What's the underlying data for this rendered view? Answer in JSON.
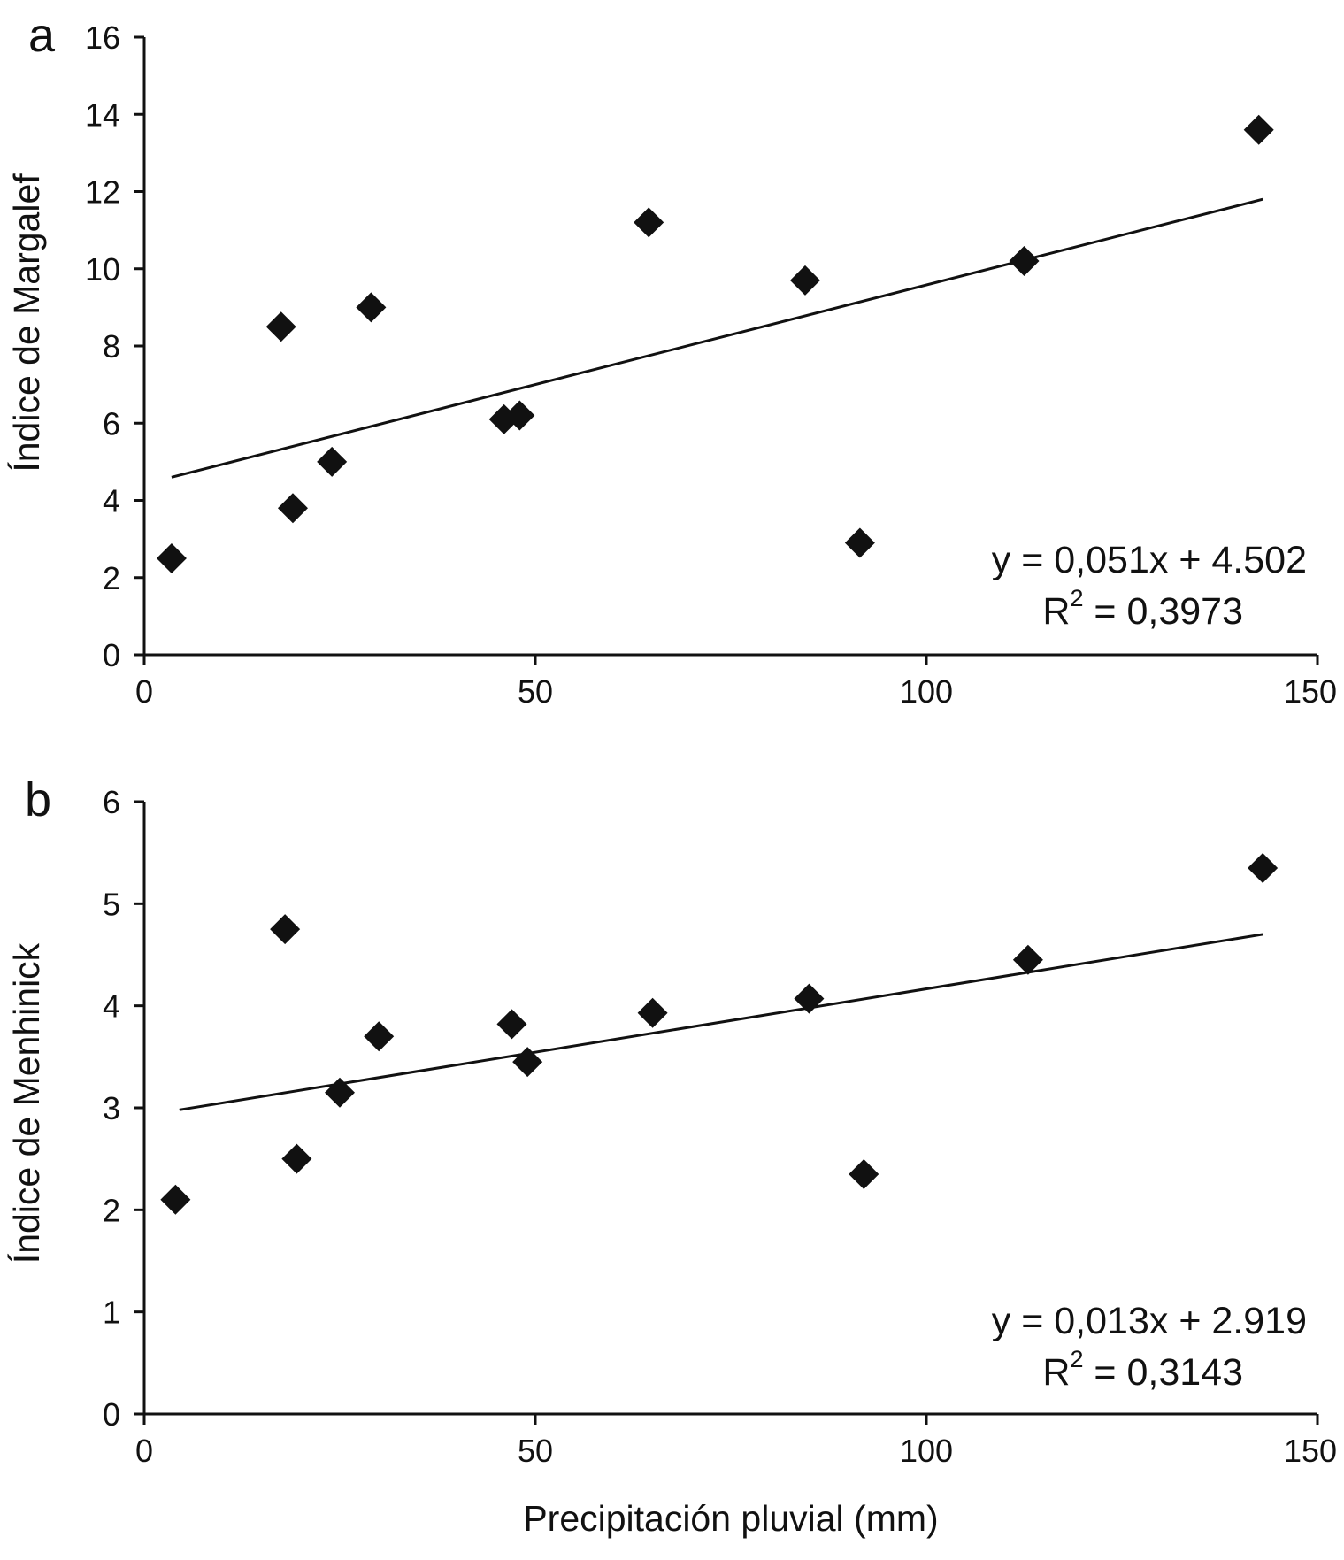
{
  "figure": {
    "x_axis_title": "Precipitación pluvial (mm)"
  },
  "chart_data": [
    {
      "type": "scatter",
      "panel_label": "a",
      "title": "",
      "xlabel": "Precipitación pluvial (mm)",
      "ylabel": "Índice de Margalef",
      "xlim": [
        0,
        150
      ],
      "ylim": [
        0,
        16
      ],
      "x_ticks": [
        0,
        50,
        100,
        150
      ],
      "y_ticks": [
        0,
        2,
        4,
        6,
        8,
        10,
        12,
        14,
        16
      ],
      "x_tick_labels": [
        "0",
        "50",
        "100",
        "150"
      ],
      "y_tick_labels": [
        "0",
        "2",
        "4",
        "6",
        "8",
        "10",
        "12",
        "14",
        "16"
      ],
      "series": [
        {
          "name": "Índice de Margalef",
          "marker": "diamond",
          "color": "#111111",
          "points": [
            {
              "x": 3.5,
              "y": 2.5
            },
            {
              "x": 17.5,
              "y": 8.5
            },
            {
              "x": 19,
              "y": 3.8
            },
            {
              "x": 24,
              "y": 5.0
            },
            {
              "x": 29,
              "y": 9.0
            },
            {
              "x": 46,
              "y": 6.1
            },
            {
              "x": 48,
              "y": 6.2
            },
            {
              "x": 64.5,
              "y": 11.2
            },
            {
              "x": 84.5,
              "y": 9.7
            },
            {
              "x": 91.5,
              "y": 2.9
            },
            {
              "x": 112.5,
              "y": 10.2
            },
            {
              "x": 142.5,
              "y": 13.6
            }
          ]
        }
      ],
      "trendline": {
        "x_start": 3.5,
        "x_end": 143,
        "y_start": 4.6,
        "y_end": 11.8
      },
      "equation": {
        "line1": "y = 0,051x + 4.502",
        "r_prefix": "R",
        "r_exponent": "2",
        "r_value": " = 0,3973"
      }
    },
    {
      "type": "scatter",
      "panel_label": "b",
      "title": "",
      "xlabel": "Precipitación pluvial (mm)",
      "ylabel": "Índice de Menhinick",
      "xlim": [
        0,
        150
      ],
      "ylim": [
        0,
        6
      ],
      "x_ticks": [
        0,
        50,
        100,
        150
      ],
      "y_ticks": [
        0,
        1,
        2,
        3,
        4,
        5,
        6
      ],
      "x_tick_labels": [
        "0",
        "50",
        "100",
        "150"
      ],
      "y_tick_labels": [
        "0",
        "1",
        "2",
        "3",
        "4",
        "5",
        "6"
      ],
      "series": [
        {
          "name": "Índice de Menhinick",
          "marker": "diamond",
          "color": "#111111",
          "points": [
            {
              "x": 4,
              "y": 2.1
            },
            {
              "x": 18,
              "y": 4.75
            },
            {
              "x": 19.5,
              "y": 2.5
            },
            {
              "x": 25,
              "y": 3.15
            },
            {
              "x": 30,
              "y": 3.7
            },
            {
              "x": 47,
              "y": 3.82
            },
            {
              "x": 49,
              "y": 3.45
            },
            {
              "x": 65,
              "y": 3.93
            },
            {
              "x": 85,
              "y": 4.07
            },
            {
              "x": 92,
              "y": 2.35
            },
            {
              "x": 113,
              "y": 4.45
            },
            {
              "x": 143,
              "y": 5.35
            }
          ]
        }
      ],
      "trendline": {
        "x_start": 4.5,
        "x_end": 143,
        "y_start": 2.98,
        "y_end": 4.7
      },
      "equation": {
        "line1": "y = 0,013x + 2.919",
        "r_prefix": "R",
        "r_exponent": "2",
        "r_value": " = 0,3143"
      }
    }
  ]
}
